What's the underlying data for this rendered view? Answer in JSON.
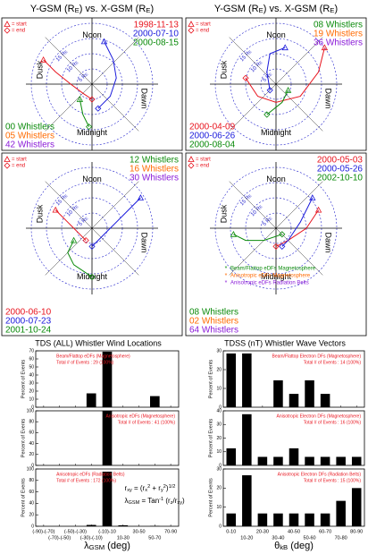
{
  "headers": [
    [
      {
        "t": "Y-GSM (R"
      },
      {
        "t": "E",
        "s": "sub"
      },
      {
        "t": ") vs. X-GSM (R"
      },
      {
        "t": "E",
        "s": "sub"
      },
      {
        "t": ")"
      }
    ],
    [
      {
        "t": "Y-GSM (R"
      },
      {
        "t": "E",
        "s": "sub"
      },
      {
        "t": ") vs. X-GSM (R"
      },
      {
        "t": "E",
        "s": "sub"
      },
      {
        "t": ")"
      }
    ]
  ],
  "chart_data": [
    {
      "type": "polar",
      "xlim": [
        -20,
        20
      ],
      "ylim": [
        -20,
        20
      ],
      "rticks": [
        {
          "value": 5,
          "label": [
            {
              "t": "5 R"
            },
            {
              "t": "E",
              "s": "sub"
            }
          ]
        },
        {
          "value": 10,
          "label": [
            {
              "t": "10 R"
            },
            {
              "t": "E",
              "s": "sub"
            }
          ]
        },
        {
          "value": 15,
          "label": [
            {
              "t": "15 R"
            },
            {
              "t": "E",
              "s": "sub"
            }
          ]
        },
        20
      ],
      "directions": {
        "top": "Noon",
        "bottom": "Midnight",
        "left": "Dusk",
        "right": "Dawn"
      },
      "markers": [
        "= start",
        "= end"
      ],
      "legend": "top-right",
      "annotation_corner": "bottom-left",
      "series": [
        {
          "name": "1998-11-13",
          "color": "#e8141e",
          "x": [
            8,
            4,
            0,
            -3,
            -5
          ],
          "values": [
            16,
            12,
            7,
            3,
            0
          ]
        },
        {
          "name": "2000-07-10",
          "color": "#1a1adb",
          "x": [
            14,
            8,
            2,
            -4,
            -8
          ],
          "values": [
            -4,
            -7,
            -8,
            -6,
            -2
          ]
        },
        {
          "name": "2000-08-15",
          "color": "#0a8a0a",
          "x": [
            -5,
            -10,
            -14
          ],
          "values": [
            4,
            3,
            1
          ]
        }
      ],
      "annotations": [
        {
          "text": "00 Whistlers",
          "color": "#0a8a0a"
        },
        {
          "text": "05 Whistlers",
          "color": "#ff6a00"
        },
        {
          "text": "42 Whistlers",
          "color": "#8a1ad8"
        }
      ]
    },
    {
      "type": "polar",
      "xlim": [
        -20,
        20
      ],
      "ylim": [
        -20,
        20
      ],
      "rticks": [
        {
          "value": 5,
          "label": [
            {
              "t": "5 R"
            },
            {
              "t": "E",
              "s": "sub"
            }
          ]
        },
        {
          "value": 10,
          "label": [
            {
              "t": "10 R"
            },
            {
              "t": "E",
              "s": "sub"
            }
          ]
        },
        {
          "value": 15,
          "label": [
            {
              "t": "15 R"
            },
            {
              "t": "E",
              "s": "sub"
            }
          ]
        },
        20
      ],
      "directions": {
        "top": "Noon",
        "bottom": "Midnight",
        "left": "Dusk",
        "right": "Dawn"
      },
      "markers": [
        "= start",
        "= end"
      ],
      "legend": "bottom-left",
      "annotation_corner": "top-right",
      "series": [
        {
          "name": "2000-04-09",
          "color": "#e8141e",
          "x": [
            12,
            4,
            -4,
            -6,
            -4,
            2
          ],
          "values": [
            -16,
            -14,
            -8,
            0,
            6,
            10
          ]
        },
        {
          "name": "2000-06-26",
          "color": "#1a1adb",
          "x": [
            12,
            10,
            4,
            -2
          ],
          "values": [
            -3,
            2,
            3,
            2
          ]
        },
        {
          "name": "2000-08-04",
          "color": "#0a8a0a",
          "x": [
            -2,
            -6,
            -10
          ],
          "values": [
            -4,
            -2,
            3
          ]
        }
      ],
      "annotations": [
        {
          "text": "08 Whistlers",
          "color": "#0a8a0a"
        },
        {
          "text": "19 Whistlers",
          "color": "#ff6a00"
        },
        {
          "text": "36 Whistlers",
          "color": "#8a1ad8"
        }
      ]
    },
    {
      "type": "polar",
      "xlim": [
        -20,
        20
      ],
      "ylim": [
        -20,
        20
      ],
      "rticks": [
        {
          "value": 5,
          "label": [
            {
              "t": "5 R"
            },
            {
              "t": "E",
              "s": "sub"
            }
          ]
        },
        {
          "value": 10,
          "label": [
            {
              "t": "10 R"
            },
            {
              "t": "E",
              "s": "sub"
            }
          ]
        },
        {
          "value": 15,
          "label": [
            {
              "t": "15 R"
            },
            {
              "t": "E",
              "s": "sub"
            }
          ]
        },
        20
      ],
      "directions": {
        "top": "Noon",
        "bottom": "Midnight",
        "left": "Dusk",
        "right": "Dawn"
      },
      "markers": [
        "= start",
        "= end"
      ],
      "legend": "bottom-left",
      "annotation_corner": "top-right",
      "series": [
        {
          "name": "2000-06-10",
          "color": "#e8141e",
          "x": [
            6,
            2,
            -2,
            -4
          ],
          "values": [
            12,
            8,
            4,
            2
          ]
        },
        {
          "name": "2000-07-23",
          "color": "#1a1adb",
          "x": [
            10,
            6,
            0,
            -4,
            -6
          ],
          "values": [
            -16,
            -12,
            -6,
            -2,
            0
          ]
        },
        {
          "name": "2001-10-24",
          "color": "#0a8a0a",
          "x": [
            -4,
            -8,
            -12,
            -16
          ],
          "values": [
            6,
            8,
            6,
            0
          ]
        }
      ],
      "annotations": [
        {
          "text": "12 Whistlers",
          "color": "#0a8a0a"
        },
        {
          "text": "16 Whistlers",
          "color": "#ff6a00"
        },
        {
          "text": "30 Whistlers",
          "color": "#8a1ad8"
        }
      ]
    },
    {
      "type": "polar",
      "xlim": [
        -20,
        20
      ],
      "ylim": [
        -20,
        20
      ],
      "rticks": [
        {
          "value": 5,
          "label": [
            {
              "t": "5 R"
            },
            {
              "t": "E",
              "s": "sub"
            }
          ]
        },
        {
          "value": 10,
          "label": [
            {
              "t": "10 R"
            },
            {
              "t": "E",
              "s": "sub"
            }
          ]
        },
        {
          "value": 15,
          "label": [
            {
              "t": "15 R"
            },
            {
              "t": "E",
              "s": "sub"
            }
          ]
        },
        20
      ],
      "directions": {
        "top": "Noon",
        "bottom": "Midnight",
        "left": "Dusk",
        "right": "Dawn"
      },
      "markers": [
        "= start",
        "= end"
      ],
      "legend": "top-right",
      "annotation_corner": "bottom-left",
      "series": [
        {
          "name": "2000-05-03",
          "color": "#e8141e",
          "x": [
            6,
            0,
            -4,
            -6
          ],
          "values": [
            -14,
            -10,
            -4,
            0
          ]
        },
        {
          "name": "2000-05-26",
          "color": "#1a1adb",
          "x": [
            10,
            2,
            -4,
            -6
          ],
          "values": [
            -12,
            -8,
            -4,
            -2
          ]
        },
        {
          "name": "2002-10-10",
          "color": "#0a8a0a",
          "x": [
            -2,
            -4,
            -4,
            -2
          ],
          "values": [
            14,
            10,
            4,
            -2
          ]
        }
      ],
      "event_legend": [
        {
          "text": "Beam/Flattop eDFs Magnetosphere",
          "color": "#0a8a0a"
        },
        {
          "text": "Anisotropic eDFs Magnetosphere",
          "color": "#ff6a00"
        },
        {
          "text": "Anisotropic eDFs Radiation Belts",
          "color": "#8a1ad8"
        }
      ],
      "annotations": [
        {
          "text": "08 Whistlers",
          "color": "#0a8a0a"
        },
        {
          "text": "02 Whistlers",
          "color": "#ff6a00"
        },
        {
          "text": "64 Whistlers",
          "color": "#8a1ad8"
        }
      ]
    },
    {
      "type": "bar",
      "title": "TDS (ALL) Whistler Wind Locations",
      "ylabel": "Percent of Events",
      "categories": [
        "(-90)-(-70)",
        "(-70)-(-50)",
        "(-50)-(-30)",
        "(-30)-(-10)",
        "(-10)-10",
        "10-30",
        "30-50",
        "50-70",
        "70-90"
      ],
      "values": [
        0,
        0,
        0,
        17.2,
        69,
        0,
        0,
        13.8,
        0
      ],
      "color": "#000000",
      "ylim": [
        0,
        70
      ],
      "yticks": [
        0,
        10,
        20,
        30,
        40,
        50,
        60,
        70
      ],
      "annotation_corner": "top-left",
      "annotations": [
        "Beam/Flattop eDFs (Magnetosphere)",
        "Total # of Events : 29 (100%)"
      ]
    },
    {
      "type": "bar",
      "ylabel": "Percent of Events",
      "categories": [
        "(-90)-(-70)",
        "(-70)-(-50)",
        "(-50)-(-30)",
        "(-30)-(-10)",
        "(-10)-10",
        "10-30",
        "30-50",
        "50-70",
        "70-90"
      ],
      "values": [
        0,
        0,
        0,
        0,
        100,
        0,
        0,
        0,
        0
      ],
      "color": "#000000",
      "ylim": [
        0,
        100
      ],
      "yticks": [
        0,
        20,
        40,
        60,
        80,
        100
      ],
      "annotation_corner": "top-right",
      "annotations": [
        "Anisotropic eDFs (Magnetosphere)",
        "Total # of Events : 41 (100%)"
      ]
    },
    {
      "type": "bar",
      "ylabel": "Percent of Events",
      "categories": [
        "(-90)-(-70)",
        "(-70)-(-50)",
        "(-50)-(-30)",
        "(-30)-(-10)",
        "(-10)-10",
        "10-30",
        "30-50",
        "50-70",
        "70-90"
      ],
      "values": [
        0,
        0,
        0,
        2.3,
        95.3,
        1.7,
        0,
        0.6,
        0
      ],
      "color": "#000000",
      "ylim": [
        0,
        100
      ],
      "yticks": [
        0,
        20,
        40,
        60,
        80,
        100
      ],
      "annotation_corner": "top-left",
      "annotations": [
        "Anisotropic eDFs (Radiation Belts)",
        "Total # of Events : 172 (100%)"
      ],
      "formula": [
        [
          {
            "t": "r"
          },
          {
            "t": "xy",
            "s": "sub"
          },
          {
            "t": " = (r"
          },
          {
            "t": "x",
            "s": "sub"
          },
          {
            "t": "2",
            "s": "sup"
          },
          {
            "t": " + r"
          },
          {
            "t": "y",
            "s": "sub"
          },
          {
            "t": "2",
            "s": "sup"
          },
          {
            "t": ")"
          },
          {
            "t": "1/2",
            "s": "sup"
          }
        ],
        [
          {
            "t": "λ"
          },
          {
            "t": "GSM",
            "s": "sub"
          },
          {
            "t": " = Tan"
          },
          {
            "t": "-1",
            "s": "sup"
          },
          {
            "t": " (r"
          },
          {
            "t": "z",
            "s": "sub"
          },
          {
            "t": "/r"
          },
          {
            "t": "xy",
            "s": "sub"
          },
          {
            "t": ")"
          }
        ]
      ],
      "xlabel": [
        {
          "t": "λ"
        },
        {
          "t": "GSM",
          "s": "sub"
        },
        {
          "t": " (deg)"
        }
      ]
    },
    {
      "type": "bar",
      "title": "TDSS (nT) Whistler Wave Vectors",
      "ylabel": "Percent of Events",
      "categories": [
        "0-10",
        "10-20",
        "20-30",
        "30-40",
        "40-50",
        "50-60",
        "60-70",
        "70-80",
        "80-90"
      ],
      "values": [
        28.6,
        28.6,
        0,
        14.3,
        7.1,
        14.3,
        7.1,
        0,
        0
      ],
      "color": "#000000",
      "ylim": [
        0,
        30
      ],
      "yticks": [
        0,
        10,
        20,
        30
      ],
      "annotation_corner": "top-right",
      "annotations": [
        "Beam/Flattop Electron DFs (Magnetosphere)",
        "Total # of Events : 14 (100%)"
      ]
    },
    {
      "type": "bar",
      "ylabel": "Percent of Events",
      "categories": [
        "0-10",
        "10-20",
        "20-30",
        "30-40",
        "40-50",
        "50-60",
        "60-70",
        "70-80",
        "80-90"
      ],
      "values": [
        12.5,
        37.5,
        6.25,
        6.25,
        12.5,
        6.25,
        6.25,
        6.25,
        6.25
      ],
      "color": "#000000",
      "ylim": [
        0,
        40
      ],
      "yticks": [
        0,
        10,
        20,
        30,
        40
      ],
      "annotation_corner": "top-right",
      "annotations": [
        "Anisotropic Electron DFs (Magnetosphere)",
        "Total # of Events : 16 (100%)"
      ]
    },
    {
      "type": "bar",
      "ylabel": "Percent of Events",
      "categories": [
        "0-10",
        "10-20",
        "20-30",
        "30-40",
        "40-50",
        "50-60",
        "60-70",
        "70-80",
        "80-90"
      ],
      "values": [
        6.7,
        26.7,
        6.7,
        6.7,
        6.7,
        6.7,
        6.7,
        13.3,
        20
      ],
      "color": "#000000",
      "ylim": [
        0,
        30
      ],
      "yticks": [
        0,
        10,
        20,
        30
      ],
      "annotation_corner": "top-right",
      "annotations": [
        "Anisotropic Electron DFs (Radiation Belts)",
        "Total # of Events : 15 (100%)"
      ],
      "xlabel": [
        {
          "t": "θ"
        },
        {
          "t": "kB",
          "s": "sub"
        },
        {
          "t": " (deg)"
        }
      ]
    }
  ]
}
